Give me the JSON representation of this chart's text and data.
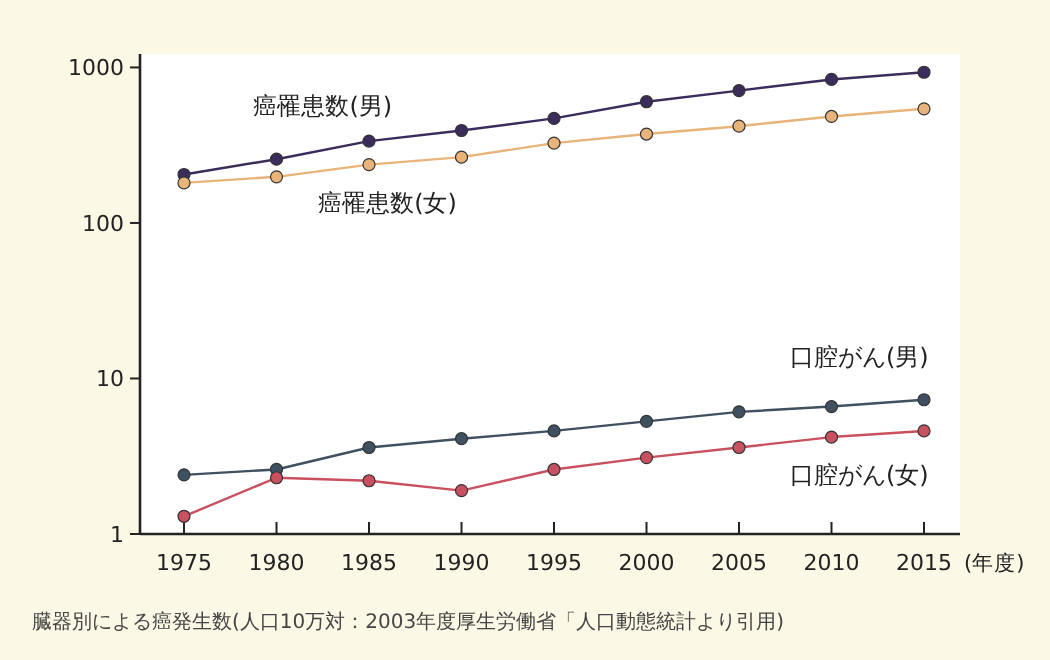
{
  "chart_data": {
    "type": "line",
    "xlabel": "(年度)",
    "categories": [
      "1975",
      "1980",
      "1985",
      "1990",
      "1995",
      "2000",
      "2005",
      "2010",
      "2015"
    ],
    "series": [
      {
        "name": "癌罹患数(男)",
        "color": "#3a2d5c",
        "values": [
          205,
          257,
          336,
          393,
          470,
          602,
          710,
          837,
          931
        ]
      },
      {
        "name": "癌罹患数(女)",
        "color": "#e8b47a",
        "values": [
          181,
          198,
          237,
          265,
          326,
          373,
          419,
          484,
          542
        ]
      },
      {
        "name": "口腔がん(男)",
        "color": "#3f5060",
        "values": [
          2.4,
          2.6,
          3.6,
          4.1,
          4.6,
          5.3,
          6.1,
          6.6,
          7.3
        ]
      },
      {
        "name": "口腔がん(女)",
        "color": "#c9505e",
        "values": [
          1.3,
          2.3,
          2.2,
          1.9,
          2.6,
          3.1,
          3.6,
          4.2,
          4.6
        ]
      }
    ],
    "log": true,
    "ylim": [
      1,
      1150
    ],
    "yticks": [
      1,
      10,
      100,
      1000
    ],
    "grid": false,
    "legend": false,
    "marker": "circle",
    "line_style": "solid",
    "annotations": [
      "臓器別による癌発生数(人口10万対：2003年度厚生労働省「人口動態統計より引用)"
    ]
  }
}
